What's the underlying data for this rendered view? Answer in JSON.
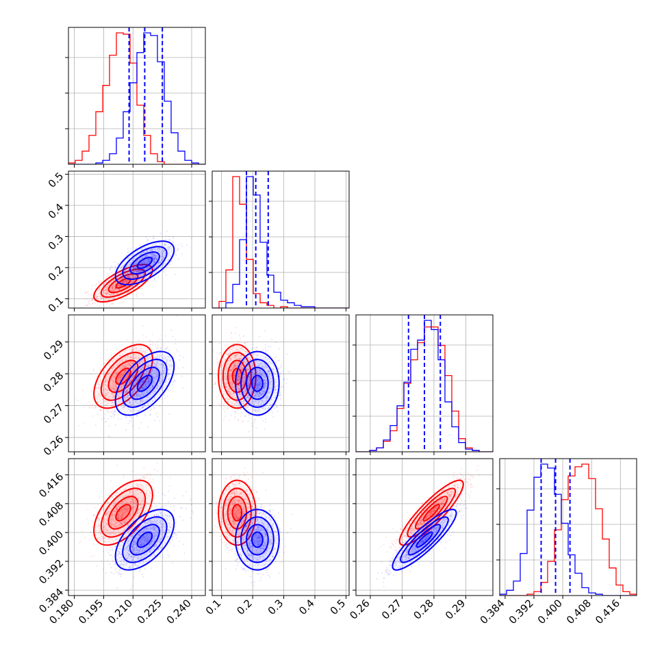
{
  "colors": {
    "series_a": "#ff0000",
    "series_b": "#0000ff",
    "grid": "#b0b0b0",
    "axes": "#000000"
  },
  "chart_data": {
    "type": "corner",
    "title": "",
    "grid": true,
    "parameters": [
      {
        "range": [
          0.177,
          0.247
        ],
        "ticks": [
          "0.180",
          "0.195",
          "0.210",
          "0.225",
          "0.240"
        ]
      },
      {
        "range": [
          0.07,
          0.51
        ],
        "ticks": [
          "0.1",
          "0.2",
          "0.3",
          "0.4",
          "0.5"
        ]
      },
      {
        "range": [
          0.2555,
          0.2985
        ],
        "ticks": [
          "0.26",
          "0.27",
          "0.28",
          "0.29"
        ]
      },
      {
        "range": [
          0.3825,
          0.4205
        ],
        "ticks": [
          "0.384",
          "0.392",
          "0.400",
          "0.408",
          "0.416"
        ]
      }
    ],
    "series": [
      {
        "color": "#ff0000",
        "means": [
          0.205,
          0.15,
          0.2792,
          0.4055
        ],
        "stds": [
          0.0075,
          0.03,
          0.005,
          0.0045
        ],
        "correlations": [
          [
            1.0,
            0.7,
            0.55,
            0.55
          ],
          [
            0.7,
            1.0,
            0.0,
            0.0
          ],
          [
            0.55,
            0.0,
            1.0,
            0.88
          ],
          [
            0.55,
            0.0,
            0.88,
            1.0
          ]
        ]
      },
      {
        "color": "#0000ff",
        "means": [
          0.216,
          0.215,
          0.277,
          0.398
        ],
        "stds": [
          0.0075,
          0.035,
          0.005,
          0.0042
        ],
        "correlations": [
          [
            1.0,
            0.6,
            0.55,
            0.55
          ],
          [
            0.6,
            1.0,
            0.0,
            0.0
          ],
          [
            0.55,
            0.0,
            1.0,
            0.88
          ],
          [
            0.55,
            0.0,
            0.88,
            1.0
          ]
        ]
      }
    ],
    "quantile_lines": {
      "color": "#0000ff",
      "values": [
        [
          0.208,
          0.216,
          0.225
        ],
        [
          0.18,
          0.21,
          0.25
        ],
        [
          0.272,
          0.277,
          0.282
        ],
        [
          0.394,
          0.398,
          0.402
        ]
      ]
    },
    "histograms": [
      {
        "bin_edges": [
          0.177,
          0.1805,
          0.184,
          0.1875,
          0.191,
          0.1945,
          0.198,
          0.2015,
          0.205,
          0.2085,
          0.212,
          0.2155,
          0.219,
          0.2225,
          0.226,
          0.2295,
          0.233,
          0.2365,
          0.24,
          0.2435,
          0.247
        ],
        "series_a": [
          1,
          3,
          10,
          22,
          40,
          60,
          83,
          100,
          99,
          77,
          45,
          22,
          8,
          2,
          0,
          0,
          0,
          0,
          0,
          0
        ],
        "series_b": [
          0,
          0,
          0,
          0,
          1,
          3,
          8,
          20,
          40,
          62,
          85,
          100,
          98,
          78,
          48,
          24,
          10,
          3,
          1,
          0
        ]
      },
      {
        "bin_edges": [
          0.07,
          0.092,
          0.114,
          0.136,
          0.158,
          0.18,
          0.202,
          0.224,
          0.246,
          0.268,
          0.29,
          0.312,
          0.334,
          0.356,
          0.378,
          0.4,
          0.422,
          0.444,
          0.466,
          0.488,
          0.51
        ],
        "series_a": [
          0,
          5,
          29,
          100,
          79,
          37,
          11,
          4,
          2,
          0,
          1,
          0,
          0,
          0,
          0,
          0,
          0,
          0,
          0,
          0
        ],
        "series_b": [
          0,
          0,
          4,
          18,
          52,
          100,
          86,
          50,
          25,
          12,
          6,
          4,
          2,
          1,
          1,
          0,
          0,
          0,
          0,
          0
        ]
      },
      {
        "bin_edges": [
          0.2555,
          0.25765,
          0.2598,
          0.26195,
          0.2641,
          0.26625,
          0.2684,
          0.27055,
          0.2727,
          0.27485,
          0.277,
          0.27915,
          0.2813,
          0.28345,
          0.2856,
          0.28775,
          0.2899,
          0.29205,
          0.2942,
          0.29635,
          0.2985
        ],
        "series_a": [
          0,
          0,
          1,
          3,
          8,
          16,
          33,
          52,
          70,
          83,
          95,
          95,
          81,
          58,
          31,
          10,
          3,
          1,
          0,
          0
        ],
        "series_b": [
          0,
          0,
          1,
          3,
          9,
          20,
          35,
          53,
          78,
          85,
          100,
          93,
          70,
          38,
          19,
          7,
          2,
          1,
          0,
          0
        ]
      },
      {
        "bin_edges": [
          0.3825,
          0.3844,
          0.3863,
          0.3882,
          0.3901,
          0.392,
          0.3939,
          0.3958,
          0.3977,
          0.3996,
          0.4015,
          0.4034,
          0.4053,
          0.4072,
          0.4091,
          0.411,
          0.4129,
          0.4148,
          0.4167,
          0.4186,
          0.4205
        ],
        "series_a": [
          0,
          0,
          0,
          0,
          1,
          3,
          10,
          26,
          50,
          73,
          91,
          98,
          100,
          89,
          66,
          43,
          21,
          8,
          3,
          1
        ],
        "series_b": [
          1,
          4,
          11,
          32,
          65,
          90,
          100,
          97,
          77,
          55,
          31,
          17,
          6,
          2,
          1,
          0,
          0,
          0,
          0,
          0
        ]
      }
    ]
  }
}
